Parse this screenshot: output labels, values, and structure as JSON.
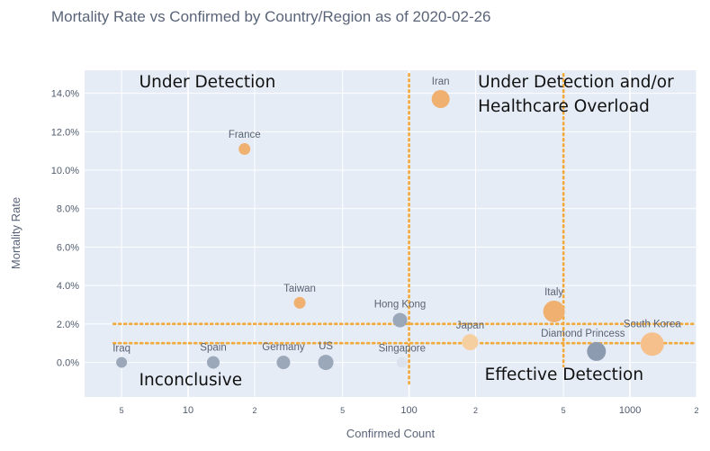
{
  "chart_data": {
    "type": "scatter",
    "title": "Mortality Rate vs Confirmed by Country/Region as of 2020-02-26",
    "xlabel": "Confirmed Count",
    "ylabel": "Mortality Rate",
    "x_scale": "log",
    "xlim": [
      3.4,
      2000
    ],
    "ylim": [
      -0.018,
      0.152
    ],
    "x_ticks": [
      {
        "value": 5,
        "label": "5",
        "minor": true
      },
      {
        "value": 10,
        "label": "10",
        "minor": false
      },
      {
        "value": 20,
        "label": "2",
        "minor": true
      },
      {
        "value": 50,
        "label": "5",
        "minor": true
      },
      {
        "value": 100,
        "label": "100",
        "minor": false
      },
      {
        "value": 200,
        "label": "2",
        "minor": true
      },
      {
        "value": 500,
        "label": "5",
        "minor": true
      },
      {
        "value": 1000,
        "label": "1000",
        "minor": false
      },
      {
        "value": 2000,
        "label": "2",
        "minor": true
      }
    ],
    "y_ticks": [
      {
        "value": 0,
        "label": "0.0%"
      },
      {
        "value": 0.02,
        "label": "2.0%"
      },
      {
        "value": 0.04,
        "label": "4.0%"
      },
      {
        "value": 0.06,
        "label": "6.0%"
      },
      {
        "value": 0.08,
        "label": "8.0%"
      },
      {
        "value": 0.1,
        "label": "10.0%"
      },
      {
        "value": 0.12,
        "label": "12.0%"
      },
      {
        "value": 0.14,
        "label": "14.0%"
      }
    ],
    "points": [
      {
        "label": "Iraq",
        "x": 5,
        "y": 0.0,
        "size": 6,
        "color": "#9aa8ba",
        "label_dx": 0
      },
      {
        "label": "Spain",
        "x": 13,
        "y": 0.0,
        "size": 7,
        "color": "#9aa8ba",
        "label_dx": 0
      },
      {
        "label": "Germany",
        "x": 27,
        "y": 0.0,
        "size": 7.5,
        "color": "#9aa8ba",
        "label_dx": 0
      },
      {
        "label": "US",
        "x": 42,
        "y": 0.0,
        "size": 8.5,
        "color": "#9aa8ba",
        "label_dx": 0
      },
      {
        "label": "Singapore",
        "x": 93,
        "y": 0.0,
        "size": 6,
        "color": "#dde3ee",
        "label_dx": 0
      },
      {
        "label": "Hong Kong",
        "x": 91,
        "y": 0.022,
        "size": 8,
        "color": "#9aa8ba",
        "label_dx": 0
      },
      {
        "label": "Japan",
        "x": 189,
        "y": 0.0105,
        "size": 9,
        "color": "#f6cfa1",
        "label_dx": 0
      },
      {
        "label": "Diamond Princess",
        "x": 705,
        "y": 0.0057,
        "size": 10.5,
        "color": "#8c9bb0",
        "label_dx": 15
      },
      {
        "label": "South Korea",
        "x": 1261,
        "y": 0.0095,
        "size": 13,
        "color": "#f6c08c",
        "label_dx": 0
      },
      {
        "label": "Italy",
        "x": 453,
        "y": 0.0265,
        "size": 12,
        "color": "#f0b070",
        "label_dx": 0
      },
      {
        "label": "Taiwan",
        "x": 32,
        "y": 0.031,
        "size": 6.5,
        "color": "#f0b070",
        "label_dx": 0
      },
      {
        "label": "France",
        "x": 18,
        "y": 0.111,
        "size": 6.5,
        "color": "#f0b070",
        "label_dx": 0
      },
      {
        "label": "Iran",
        "x": 139,
        "y": 0.137,
        "size": 10,
        "color": "#f0b070",
        "label_dx": 0
      }
    ],
    "reference_lines": [
      {
        "orientation": "vertical",
        "x": 100,
        "y_from": -0.011,
        "y_to": 0.15
      },
      {
        "orientation": "vertical",
        "x": 500,
        "y_from": -0.002,
        "y_to": 0.15
      },
      {
        "orientation": "horizontal",
        "y": 0.02,
        "x_from": 4.6,
        "x_to": 2000
      },
      {
        "orientation": "horizontal",
        "y": 0.01,
        "x_from": 4.6,
        "x_to": 2000
      }
    ],
    "annotations": [
      {
        "lines": [
          "Under Detection"
        ],
        "x": 6,
        "y": 0.143,
        "anchor": "start"
      },
      {
        "lines": [
          "Under Detection and/or",
          "Healthcare Overload"
        ],
        "x": 205,
        "y": 0.143,
        "anchor": "start"
      },
      {
        "lines": [
          "Inconclusive"
        ],
        "x": 6,
        "y": -0.012,
        "anchor": "start"
      },
      {
        "lines": [
          "Effective Detection"
        ],
        "x": 220,
        "y": -0.009,
        "anchor": "start"
      }
    ],
    "grid": true,
    "colors": {
      "plot_background": "#e5ecf6",
      "grid": "#ffffff",
      "reference_line": "#f2a93b"
    }
  }
}
